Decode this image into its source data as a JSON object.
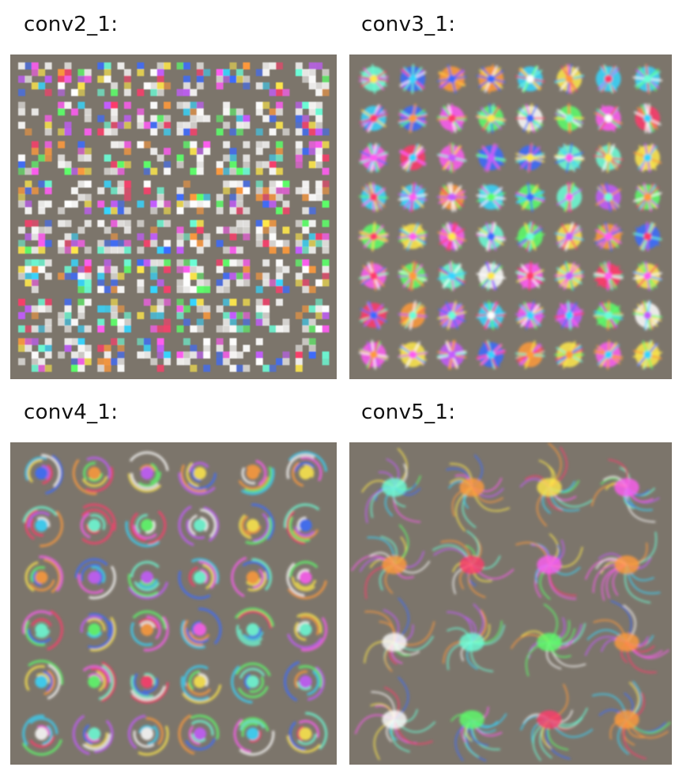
{
  "panels": [
    {
      "key": "p1",
      "label": "conv2_1:",
      "grid": 8,
      "style": "blocky"
    },
    {
      "key": "p2",
      "label": "conv3_1:",
      "grid": 8,
      "style": "textured"
    },
    {
      "key": "p3",
      "label": "conv4_1:",
      "grid": 6,
      "style": "swirl"
    },
    {
      "key": "p4",
      "label": "conv5_1:",
      "grid": 4,
      "style": "complex"
    }
  ],
  "colors": {
    "panel_background": "#7c756b",
    "filter_palette": [
      "#ff3b6b",
      "#35d6ff",
      "#5cff6a",
      "#ffe94a",
      "#c45bff",
      "#ff9a3b",
      "#3b6bff",
      "#ffffff",
      "#ff5cf2",
      "#6bffd8"
    ]
  }
}
